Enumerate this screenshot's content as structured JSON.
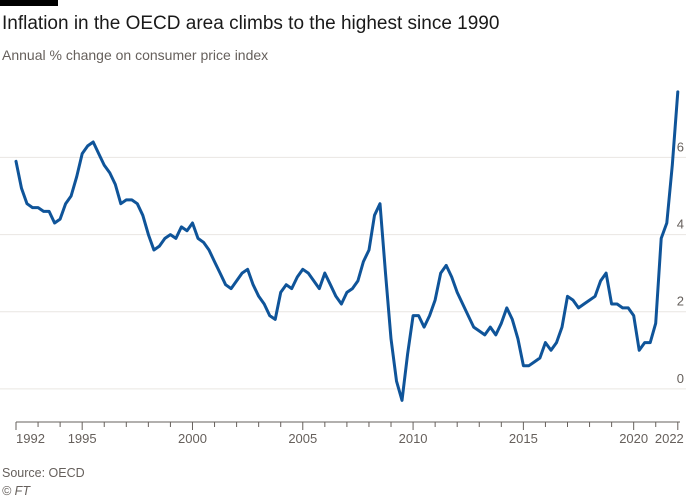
{
  "chart_data": {
    "type": "line",
    "title": "Inflation in the OECD area climbs to the highest since 1990",
    "subtitle": "Annual % change on consumer price index",
    "xlabel": "",
    "ylabel": "",
    "xlim": [
      1992.0,
      2022.1
    ],
    "ylim": [
      -0.6,
      7.8
    ],
    "y_ticks": [
      0,
      2,
      4,
      6
    ],
    "x_ticks": [
      1992,
      1995,
      2000,
      2005,
      2010,
      2015,
      2020,
      2022
    ],
    "grid": true,
    "legend": "none",
    "series_color": "#0f5499",
    "source": "Source: OECD",
    "credit": "© FT",
    "series": [
      {
        "name": "",
        "x": [
          1992.0,
          1992.25,
          1992.5,
          1992.75,
          1993.0,
          1993.25,
          1993.5,
          1993.75,
          1994.0,
          1994.25,
          1994.5,
          1994.75,
          1995.0,
          1995.25,
          1995.5,
          1995.75,
          1996.0,
          1996.25,
          1996.5,
          1996.75,
          1997.0,
          1997.25,
          1997.5,
          1997.75,
          1998.0,
          1998.25,
          1998.5,
          1998.75,
          1999.0,
          1999.25,
          1999.5,
          1999.75,
          2000.0,
          2000.25,
          2000.5,
          2000.75,
          2001.0,
          2001.25,
          2001.5,
          2001.75,
          2002.0,
          2002.25,
          2002.5,
          2002.75,
          2003.0,
          2003.25,
          2003.5,
          2003.75,
          2004.0,
          2004.25,
          2004.5,
          2004.75,
          2005.0,
          2005.25,
          2005.5,
          2005.75,
          2006.0,
          2006.25,
          2006.5,
          2006.75,
          2007.0,
          2007.25,
          2007.5,
          2007.75,
          2008.0,
          2008.25,
          2008.5,
          2008.75,
          2009.0,
          2009.25,
          2009.5,
          2009.75,
          2010.0,
          2010.25,
          2010.5,
          2010.75,
          2011.0,
          2011.25,
          2011.5,
          2011.75,
          2012.0,
          2012.25,
          2012.5,
          2012.75,
          2013.0,
          2013.25,
          2013.5,
          2013.75,
          2014.0,
          2014.25,
          2014.5,
          2014.75,
          2015.0,
          2015.25,
          2015.5,
          2015.75,
          2016.0,
          2016.25,
          2016.5,
          2016.75,
          2017.0,
          2017.25,
          2017.5,
          2017.75,
          2018.0,
          2018.25,
          2018.5,
          2018.75,
          2019.0,
          2019.25,
          2019.5,
          2019.75,
          2020.0,
          2020.25,
          2020.5,
          2020.75,
          2021.0,
          2021.25,
          2021.5,
          2021.75,
          2022.0
        ],
        "y": [
          5.9,
          5.2,
          4.8,
          4.7,
          4.7,
          4.6,
          4.6,
          4.3,
          4.4,
          4.8,
          5.0,
          5.5,
          6.1,
          6.3,
          6.4,
          6.1,
          5.8,
          5.6,
          5.3,
          4.8,
          4.9,
          4.9,
          4.8,
          4.5,
          4.0,
          3.6,
          3.7,
          3.9,
          4.0,
          3.9,
          4.2,
          4.1,
          4.3,
          3.9,
          3.8,
          3.6,
          3.3,
          3.0,
          2.7,
          2.6,
          2.8,
          3.0,
          3.1,
          2.7,
          2.4,
          2.2,
          1.9,
          1.8,
          2.5,
          2.7,
          2.6,
          2.9,
          3.1,
          3.0,
          2.8,
          2.6,
          3.0,
          2.7,
          2.4,
          2.2,
          2.5,
          2.6,
          2.8,
          3.3,
          3.6,
          4.5,
          4.8,
          3.0,
          1.3,
          0.2,
          -0.3,
          0.9,
          1.9,
          1.9,
          1.6,
          1.9,
          2.3,
          3.0,
          3.2,
          2.9,
          2.5,
          2.2,
          1.9,
          1.6,
          1.5,
          1.4,
          1.6,
          1.4,
          1.7,
          2.1,
          1.8,
          1.3,
          0.6,
          0.6,
          0.7,
          0.8,
          1.2,
          1.0,
          1.2,
          1.6,
          2.4,
          2.3,
          2.1,
          2.2,
          2.3,
          2.4,
          2.8,
          3.0,
          2.2,
          2.2,
          2.1,
          2.1,
          1.9,
          1.0,
          1.2,
          1.2,
          1.7,
          3.9,
          4.3,
          5.8,
          7.7
        ]
      }
    ]
  }
}
